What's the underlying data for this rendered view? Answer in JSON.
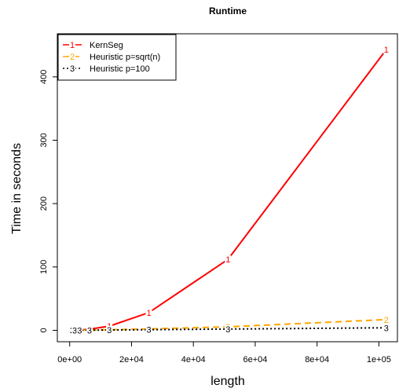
{
  "chart_data": {
    "type": "line",
    "title": "Runtime",
    "xlabel": "length",
    "ylabel": "Time in seconds",
    "xlim": [
      0,
      102400
    ],
    "ylim": [
      0,
      450
    ],
    "x_ticks": [
      0,
      20000,
      40000,
      60000,
      80000,
      100000
    ],
    "x_tick_labels": [
      "0e+00",
      "2e+04",
      "4e+04",
      "6e+04",
      "8e+04",
      "1e+05"
    ],
    "y_ticks": [
      0,
      100,
      200,
      300,
      400
    ],
    "y_tick_labels": [
      "0",
      "100",
      "200",
      "300",
      "400"
    ],
    "legend_position": "top-left",
    "x": [
      100,
      200,
      400,
      800,
      1600,
      3200,
      6400,
      12800,
      25600,
      51200,
      102400
    ],
    "series": [
      {
        "name": "KernSeg",
        "marker": "1",
        "color": "#ff0000",
        "line_style": "solid",
        "values": [
          0.01,
          0.02,
          0.05,
          0.1,
          0.2,
          0.5,
          1.8,
          6.5,
          28,
          112,
          443
        ]
      },
      {
        "name": "Heuristic p=sqrt(n)",
        "marker": "2",
        "color": "#ffa500",
        "line_style": "dashed",
        "values": [
          0.01,
          0.02,
          0.03,
          0.05,
          0.1,
          0.2,
          0.4,
          0.9,
          2.2,
          5.5,
          17
        ]
      },
      {
        "name": "Heuristic p=100",
        "marker": "3",
        "color": "#000000",
        "line_style": "dotted",
        "values": [
          0.01,
          0.01,
          0.02,
          0.04,
          0.06,
          0.12,
          0.25,
          0.5,
          1.0,
          2.0,
          4.0
        ]
      }
    ]
  }
}
